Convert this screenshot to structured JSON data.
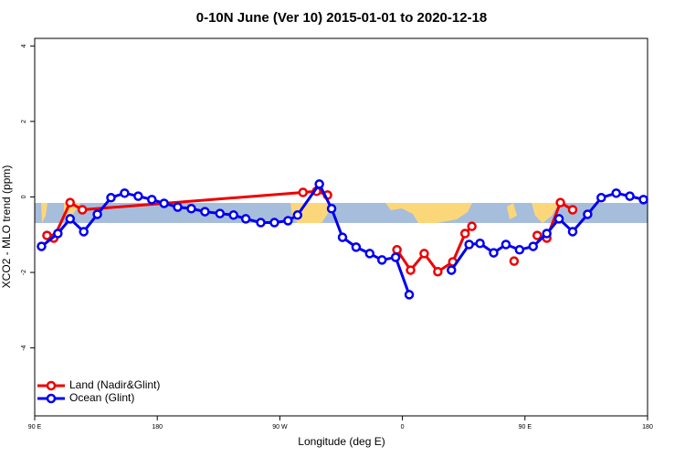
{
  "chart_data": {
    "type": "line",
    "title": "0-10N June (Ver 10)   2015-01-01 to 2020-12-18",
    "xlabel": "Longitude (deg E)",
    "ylabel": "XCO2 - MLO trend (ppm)",
    "xlim": [
      90,
      540
    ],
    "ylim": [
      -5.8,
      4.2
    ],
    "xticks": [
      {
        "value": 90,
        "label": "90 E"
      },
      {
        "value": 180,
        "label": "180"
      },
      {
        "value": 270,
        "label": "90 W"
      },
      {
        "value": 360,
        "label": "0"
      },
      {
        "value": 450,
        "label": "90 E"
      },
      {
        "value": 540,
        "label": "180"
      }
    ],
    "yticks": [
      4,
      2,
      0,
      -2,
      -4
    ],
    "legend": "bottom-left",
    "series": [
      {
        "name": "Land (Nadir&Glint)",
        "color": "#ee0000",
        "x": [
          99,
          104,
          116,
          125,
          287,
          297,
          305,
          null,
          356,
          366,
          376,
          386,
          397,
          406,
          411,
          null,
          442,
          null,
          459,
          466,
          476,
          485
        ],
        "values": [
          -1.02,
          -1.09,
          -0.15,
          -0.34,
          0.12,
          0.15,
          0.05,
          null,
          -1.4,
          -1.94,
          -1.5,
          -1.98,
          -1.72,
          -0.97,
          -0.78,
          null,
          -1.7,
          null,
          -1.02,
          -1.09,
          -0.15,
          -0.34
        ]
      },
      {
        "name": "Ocean (Glint)",
        "color": "#0000ee",
        "x": [
          95,
          107,
          116,
          126,
          136,
          146,
          156,
          166,
          176,
          185,
          195,
          205,
          215,
          226,
          236,
          245,
          256,
          266,
          276,
          283,
          299,
          308,
          316,
          326,
          336,
          345,
          355,
          365,
          null,
          396,
          409,
          417,
          427,
          436,
          446,
          456,
          466,
          475,
          485,
          496,
          506,
          517,
          527,
          537
        ],
        "values": [
          -1.31,
          -0.97,
          -0.58,
          -0.92,
          -0.46,
          -0.02,
          0.1,
          0.02,
          -0.07,
          -0.17,
          -0.27,
          -0.31,
          -0.39,
          -0.44,
          -0.48,
          -0.58,
          -0.68,
          -0.68,
          -0.63,
          -0.48,
          0.34,
          -0.31,
          -1.07,
          -1.33,
          -1.5,
          -1.67,
          -1.6,
          -2.59,
          null,
          -1.94,
          -1.26,
          -1.23,
          -1.48,
          -1.26,
          -1.4,
          -1.31,
          -0.97,
          -0.58,
          -0.92,
          -0.46,
          -0.02,
          0.1,
          0.02,
          -0.07
        ]
      }
    ]
  }
}
